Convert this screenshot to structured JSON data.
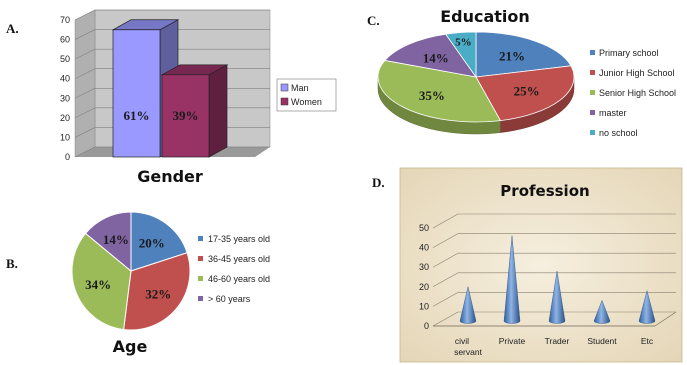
{
  "panel_letters": [
    "A.",
    "B.",
    "C.",
    "D."
  ],
  "chart_data": [
    {
      "panel": "A.",
      "type": "bar",
      "title": "Gender",
      "categories": [
        "Man",
        "Women"
      ],
      "values": [
        61,
        39
      ],
      "data_labels": [
        "61%",
        "39%"
      ],
      "y_ticks": [
        0,
        10,
        20,
        30,
        40,
        50,
        60,
        70
      ],
      "ylim": [
        0,
        70
      ],
      "bar_heights": [
        65,
        42
      ],
      "colors": [
        "#9999ff",
        "#993366"
      ],
      "legend": [
        "Man",
        "Women"
      ],
      "legend_position": "right",
      "three_d": true,
      "grid": true
    },
    {
      "panel": "B.",
      "type": "pie",
      "title": "Age",
      "categories": [
        "17-35 years old",
        "36-45 years old",
        "46-60 years old",
        "> 60 years"
      ],
      "values": [
        20,
        32,
        34,
        14
      ],
      "data_labels": [
        "20%",
        "32%",
        "34%",
        "14%"
      ],
      "colors": [
        "#4f81bd",
        "#c0504d",
        "#9bbb59",
        "#8064a2"
      ],
      "legend_position": "right"
    },
    {
      "panel": "C.",
      "type": "pie",
      "title": "Education",
      "categories": [
        "Primary school",
        "Junior High School",
        "Senior High School",
        "master",
        "no school"
      ],
      "values": [
        21,
        25,
        35,
        14,
        5
      ],
      "data_labels": [
        "21%",
        "25%",
        "35%",
        "14%",
        "5%"
      ],
      "colors": [
        "#4f81bd",
        "#c0504d",
        "#9bbb59",
        "#8064a2",
        "#4bacc6"
      ],
      "legend_position": "right",
      "three_d": true
    },
    {
      "panel": "D.",
      "type": "bar",
      "title": "Profession",
      "categories": [
        "civil servant",
        "Private",
        "Trader",
        "Student",
        "Etc"
      ],
      "values": [
        17,
        43,
        25,
        10,
        15
      ],
      "y_ticks": [
        0,
        10,
        20,
        30,
        40,
        50
      ],
      "ylim": [
        0,
        50
      ],
      "shape": "cone",
      "colors": [
        "#4f81bd"
      ],
      "background": "#efe6d2",
      "three_d": true,
      "grid": true
    }
  ]
}
